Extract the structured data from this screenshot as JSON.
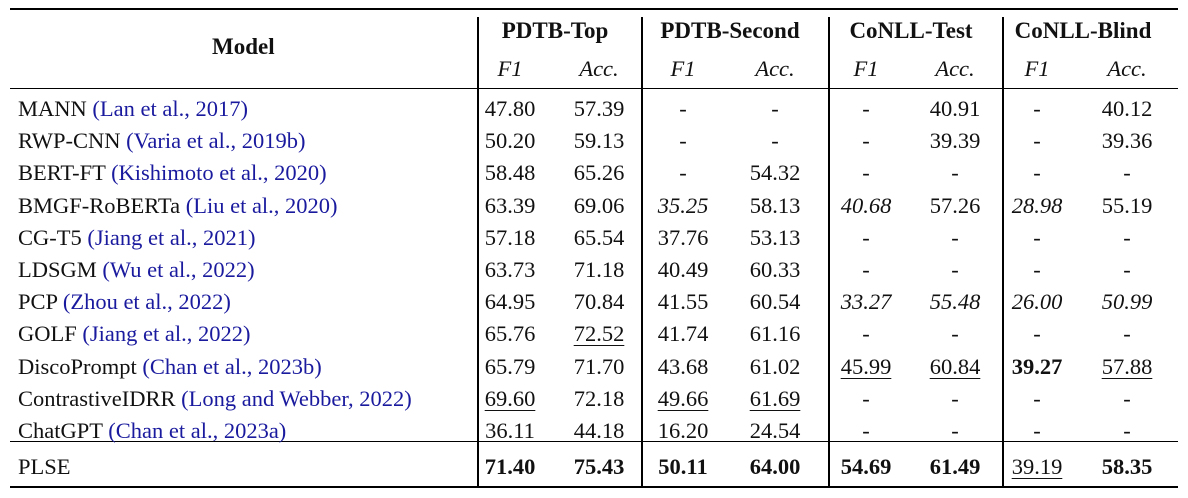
{
  "header": {
    "model_label": "Model",
    "groups": [
      "PDTB-Top",
      "PDTB-Second",
      "CoNLL-Test",
      "CoNLL-Blind"
    ],
    "metrics": [
      "F1",
      "Acc.",
      "F1",
      "Acc.",
      "F1",
      "Acc.",
      "F1",
      "Acc."
    ]
  },
  "rows": [
    {
      "name": "MANN",
      "cite": "(Lan et al., 2017)",
      "values": [
        "47.80",
        "57.39",
        "-",
        "-",
        "-",
        "40.91",
        "-",
        "40.12"
      ],
      "style": [
        "",
        "",
        "",
        "",
        "",
        "",
        "",
        ""
      ]
    },
    {
      "name": "RWP-CNN",
      "cite": "(Varia et al., 2019b)",
      "values": [
        "50.20",
        "59.13",
        "-",
        "-",
        "-",
        "39.39",
        "-",
        "39.36"
      ],
      "style": [
        "",
        "",
        "",
        "",
        "",
        "",
        "",
        ""
      ]
    },
    {
      "name": "BERT-FT",
      "cite": "(Kishimoto et al., 2020)",
      "values": [
        "58.48",
        "65.26",
        "-",
        "54.32",
        "-",
        "-",
        "-",
        "-"
      ],
      "style": [
        "",
        "",
        "",
        "",
        "",
        "",
        "",
        ""
      ]
    },
    {
      "name": "BMGF-RoBERTa",
      "cite": "(Liu et al., 2020)",
      "values": [
        "63.39",
        "69.06",
        "35.25",
        "58.13",
        "40.68",
        "57.26",
        "28.98",
        "55.19"
      ],
      "style": [
        "",
        "",
        "it",
        "",
        "it",
        "",
        "it",
        ""
      ]
    },
    {
      "name": "CG-T5",
      "cite": "(Jiang et al., 2021)",
      "values": [
        "57.18",
        "65.54",
        "37.76",
        "53.13",
        "-",
        "-",
        "-",
        "-"
      ],
      "style": [
        "",
        "",
        "",
        "",
        "",
        "",
        "",
        ""
      ]
    },
    {
      "name": "LDSGM",
      "cite": "(Wu et al., 2022)",
      "values": [
        "63.73",
        "71.18",
        "40.49",
        "60.33",
        "-",
        "-",
        "-",
        "-"
      ],
      "style": [
        "",
        "",
        "",
        "",
        "",
        "",
        "",
        ""
      ]
    },
    {
      "name": "PCP",
      "cite": "(Zhou et al., 2022)",
      "values": [
        "64.95",
        "70.84",
        "41.55",
        "60.54",
        "33.27",
        "55.48",
        "26.00",
        "50.99"
      ],
      "style": [
        "",
        "",
        "",
        "",
        "it",
        "it",
        "it",
        "it"
      ]
    },
    {
      "name": "GOLF",
      "cite": "(Jiang et al., 2022)",
      "values": [
        "65.76",
        "72.52",
        "41.74",
        "61.16",
        "-",
        "-",
        "-",
        "-"
      ],
      "style": [
        "",
        "u",
        "",
        "",
        "",
        "",
        "",
        ""
      ]
    },
    {
      "name": "DiscoPrompt",
      "cite": "(Chan et al., 2023b)",
      "values": [
        "65.79",
        "71.70",
        "43.68",
        "61.02",
        "45.99",
        "60.84",
        "39.27",
        "57.88"
      ],
      "style": [
        "",
        "",
        "",
        "",
        "u",
        "u",
        "b",
        "u"
      ]
    },
    {
      "name": "ContrastiveIDRR",
      "cite": "(Long and Webber, 2022)",
      "values": [
        "69.60",
        "72.18",
        "49.66",
        "61.69",
        "-",
        "-",
        "-",
        "-"
      ],
      "style": [
        "u",
        "",
        "u",
        "u",
        "",
        "",
        "",
        ""
      ]
    },
    {
      "name": "ChatGPT",
      "cite": "(Chan et al., 2023a)",
      "values": [
        "36.11",
        "44.18",
        "16.20",
        "24.54",
        "-",
        "-",
        "-",
        "-"
      ],
      "style": [
        "",
        "",
        "",
        "",
        "",
        "",
        "",
        ""
      ]
    }
  ],
  "final_row": {
    "name": "PLSE",
    "cite": "",
    "values": [
      "71.40",
      "75.43",
      "50.11",
      "64.00",
      "54.69",
      "61.49",
      "39.19",
      "58.35"
    ],
    "style": [
      "b",
      "b",
      "b",
      "b",
      "b",
      "b",
      "u",
      "b"
    ]
  }
}
